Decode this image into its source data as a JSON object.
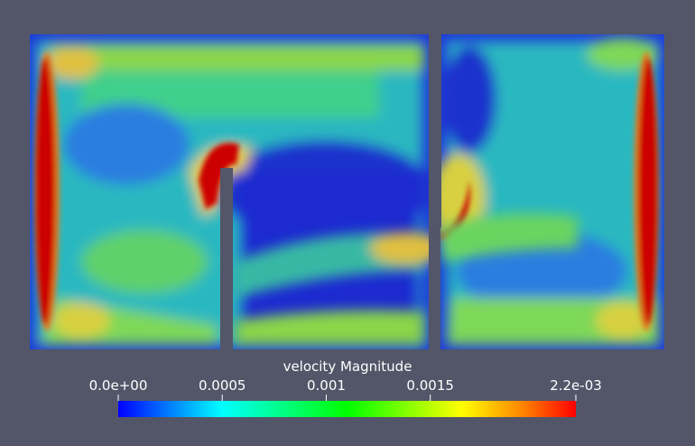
{
  "colorbar": {
    "title": "velocity Magnitude",
    "ticks": [
      {
        "label": "0.0e+00",
        "value": 0
      },
      {
        "label": "0.0005",
        "value": 0.0005
      },
      {
        "label": "0.001",
        "value": 0.001
      },
      {
        "label": "0.0015",
        "value": 0.0015
      },
      {
        "label": "2.2e-03",
        "value": 0.0022
      }
    ],
    "range": [
      0,
      0.0022
    ],
    "colors": [
      "#0000ff",
      "#00ffff",
      "#00ff00",
      "#ffff00",
      "#ff0000"
    ]
  },
  "colors": {
    "background": "#525668",
    "low": "#1a2ad0",
    "mid": "#28c8b4",
    "green": "#7ed858",
    "yellow": "#e6d848",
    "high": "#cc0000"
  }
}
